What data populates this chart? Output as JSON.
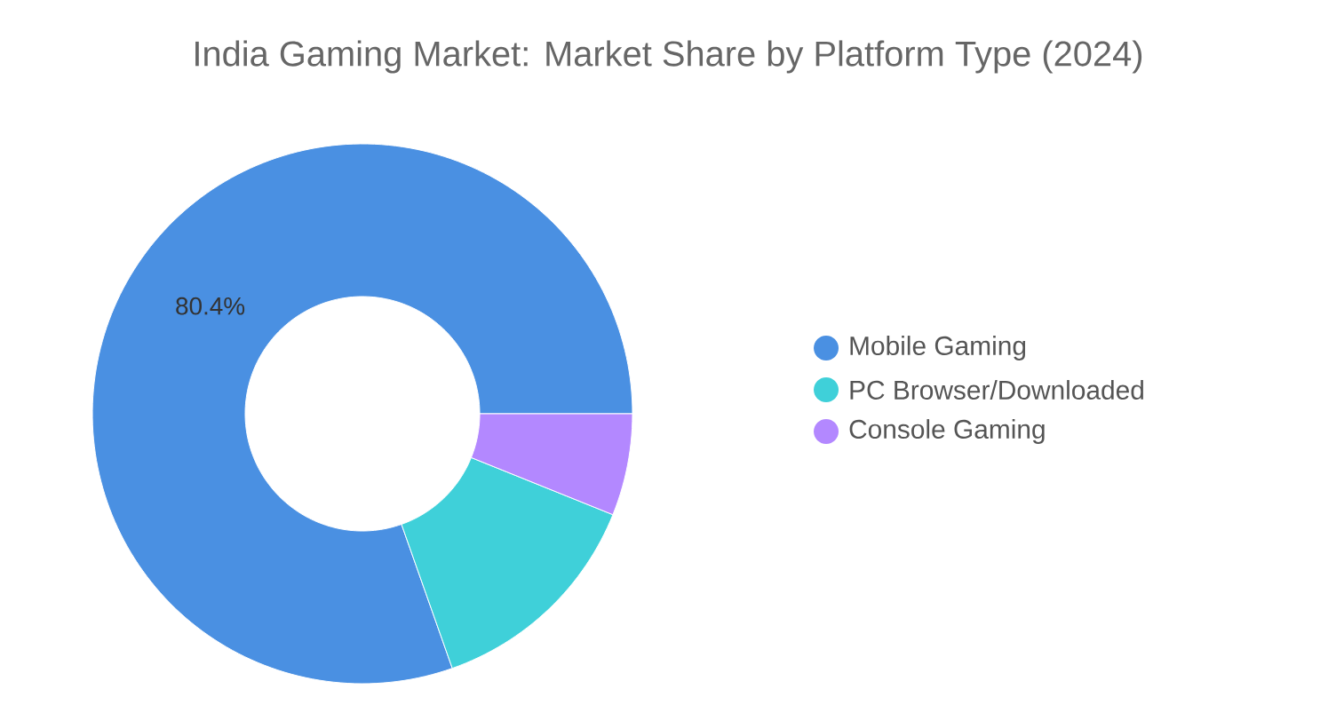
{
  "chart_data": {
    "type": "donut",
    "title": "India Gaming Market: Market Share by Platform Type (2024)",
    "categories": [
      "Mobile Gaming",
      "PC Browser/Downloaded",
      "Console Gaming"
    ],
    "values": [
      80.4,
      13.5,
      6.1
    ],
    "colors": [
      "#4a90e2",
      "#3fd0d9",
      "#b388ff"
    ],
    "value_labels": [
      "80.4%",
      null,
      null
    ],
    "legend": "right"
  }
}
